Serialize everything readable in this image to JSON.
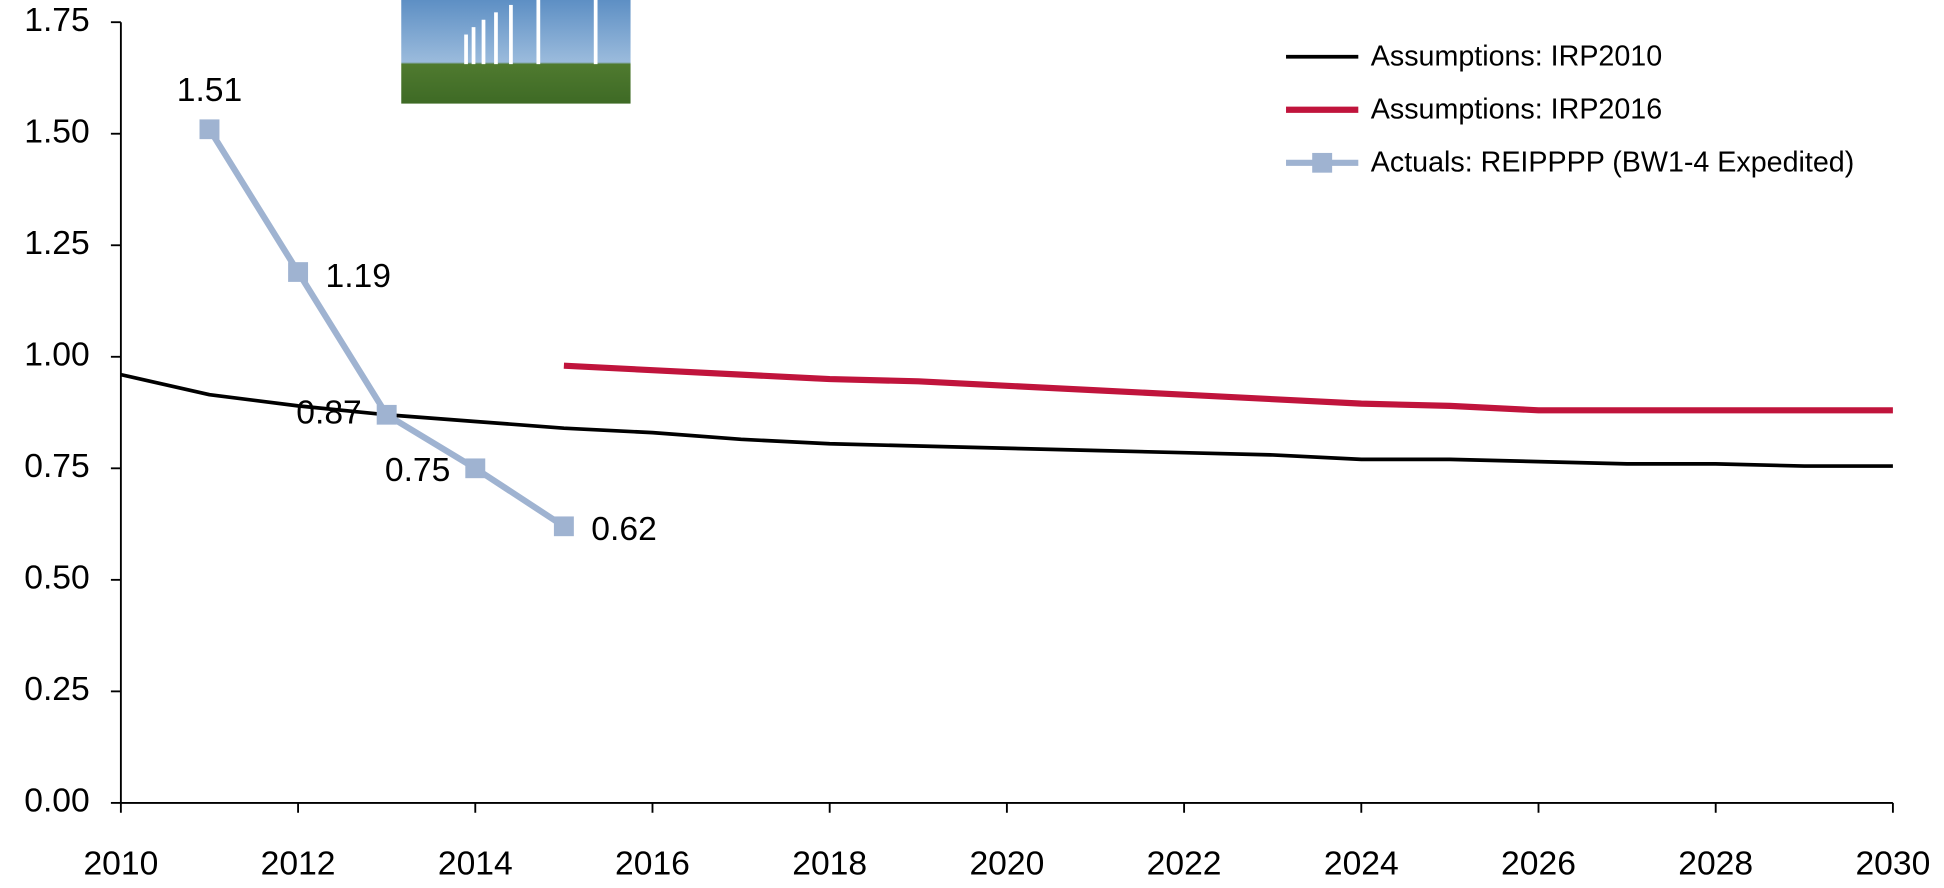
{
  "chart_data": {
    "type": "line",
    "x": [
      2010,
      2011,
      2012,
      2013,
      2014,
      2015,
      2016,
      2017,
      2018,
      2019,
      2020,
      2021,
      2022,
      2023,
      2024,
      2025,
      2026,
      2027,
      2028,
      2029,
      2030
    ],
    "series": [
      {
        "name": "Assumptions: IRP2010",
        "color": "#000000",
        "marker": false,
        "values": [
          0.96,
          0.915,
          0.89,
          0.87,
          0.855,
          0.84,
          0.83,
          0.815,
          0.805,
          0.8,
          0.795,
          0.79,
          0.785,
          0.78,
          0.77,
          0.77,
          0.765,
          0.76,
          0.76,
          0.755,
          0.755
        ]
      },
      {
        "name": "Assumptions: IRP2016",
        "color": "#c0143c",
        "marker": false,
        "values": [
          null,
          null,
          null,
          null,
          null,
          0.98,
          0.97,
          0.96,
          0.95,
          0.945,
          0.935,
          0.925,
          0.915,
          0.905,
          0.895,
          0.89,
          0.88,
          0.88,
          0.88,
          0.88,
          0.88
        ]
      },
      {
        "name": "Actuals: REIPPPP (BW1-4 Expedited)",
        "color": "#9fb3d1",
        "marker": true,
        "data_labels": true,
        "values": [
          null,
          1.51,
          1.19,
          0.87,
          0.75,
          0.62,
          null,
          null,
          null,
          null,
          null,
          null,
          null,
          null,
          null,
          null,
          null,
          null,
          null,
          null,
          null
        ]
      }
    ],
    "xlim": [
      2010,
      2030
    ],
    "xticks": [
      2010,
      2012,
      2014,
      2016,
      2018,
      2020,
      2022,
      2024,
      2026,
      2028,
      2030
    ],
    "ylim": [
      0,
      1.75
    ],
    "yticks": [
      {
        "value": 0,
        "label": "0.00"
      },
      {
        "value": 0.25,
        "label": "0.25"
      },
      {
        "value": 0.5,
        "label": "0.50"
      },
      {
        "value": 0.75,
        "label": "0.75"
      },
      {
        "value": 1,
        "label": "1.00"
      },
      {
        "value": 1.25,
        "label": "1.25"
      },
      {
        "value": 1.5,
        "label": "1.50"
      },
      {
        "value": 1.75,
        "label": "1.75"
      }
    ],
    "grid": false,
    "legend": "top-right"
  }
}
